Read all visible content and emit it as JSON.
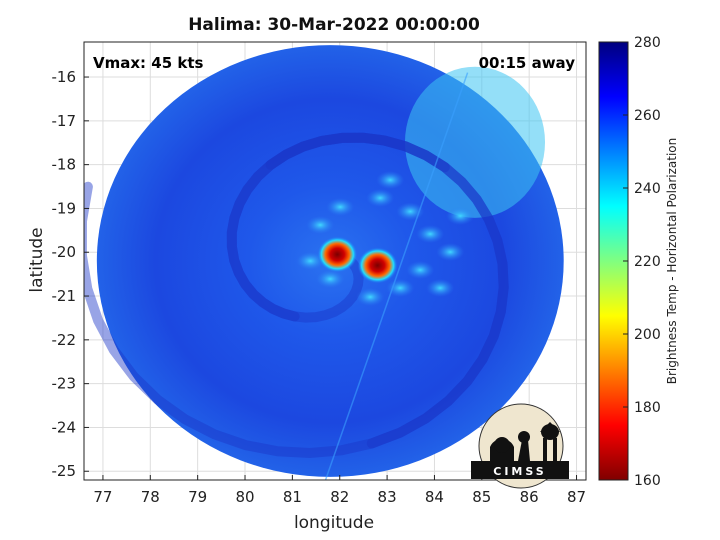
{
  "chart_data": {
    "type": "heatmap",
    "title": "Halima: 30-Mar-2022 00:00:00",
    "xlabel": "longitude",
    "ylabel": "latitude",
    "xlim": [
      76.6,
      87.2
    ],
    "ylim": [
      -25.2,
      -15.2
    ],
    "xticks": [
      77,
      78,
      79,
      80,
      81,
      82,
      83,
      84,
      85,
      86,
      87
    ],
    "yticks": [
      -16,
      -17,
      -18,
      -19,
      -20,
      -21,
      -22,
      -23,
      -24,
      -25
    ],
    "grid": true,
    "annotations": {
      "top_left": "Vmax: 45 kts",
      "top_right": "00:15 away"
    },
    "colorbar": {
      "label": "Brightness Temp - Horizontal Polarization",
      "min": 160,
      "max": 280,
      "ticks": [
        160,
        180,
        200,
        220,
        240,
        260,
        280
      ],
      "colormap": "jet"
    },
    "features": {
      "cold_cores": [
        {
          "lon": 81.95,
          "lat": -20.05,
          "value": 165
        },
        {
          "lon": 82.8,
          "lat": -20.3,
          "value": 175
        }
      ],
      "swath_center": {
        "lon": 81.8,
        "lat": -20.2
      },
      "swath_radius_deg": 5.3
    },
    "logo": "CIMSS"
  },
  "colors": {
    "background_field": "#1f4fe8",
    "outside": "#ffffff"
  }
}
